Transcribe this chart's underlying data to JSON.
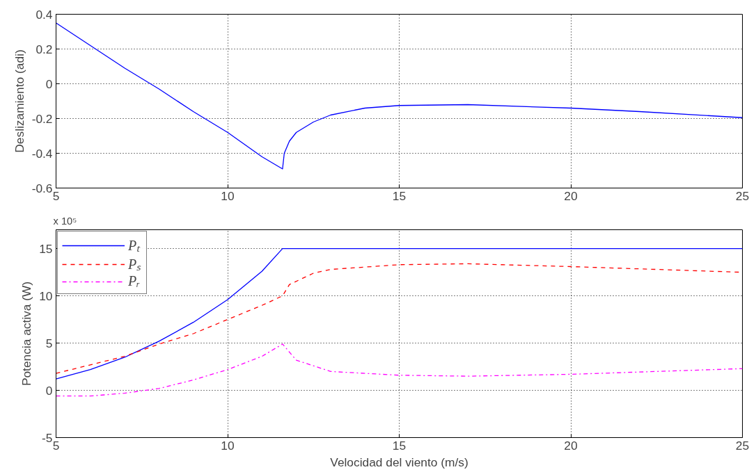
{
  "chart_data": [
    {
      "type": "line",
      "ylabel": "Deslizamiento (adi)",
      "xlim": [
        5,
        25
      ],
      "ylim": [
        -0.6,
        0.4
      ],
      "xticks": [
        5,
        10,
        15,
        20,
        25
      ],
      "yticks": [
        -0.6,
        -0.4,
        -0.2,
        0,
        0.2,
        0.4
      ],
      "grid": true,
      "legend": false,
      "series": [
        {
          "color": "#0000ff",
          "line_style": "solid",
          "x": [
            5,
            6,
            7,
            8,
            9,
            10,
            11,
            11.6,
            11.65,
            11.8,
            12,
            12.5,
            13,
            14,
            15,
            17,
            20,
            22,
            25
          ],
          "values": [
            0.35,
            0.22,
            0.09,
            -0.03,
            -0.16,
            -0.28,
            -0.42,
            -0.49,
            -0.4,
            -0.33,
            -0.28,
            -0.22,
            -0.18,
            -0.14,
            -0.125,
            -0.12,
            -0.14,
            -0.16,
            -0.195
          ]
        }
      ]
    },
    {
      "type": "line",
      "xlabel": "Velocidad del viento (m/s)",
      "ylabel": "Potencia activa (W)",
      "annotations": [
        "x 10⁵"
      ],
      "xlim": [
        5,
        25
      ],
      "ylim": [
        -5,
        17
      ],
      "xticks": [
        5,
        10,
        15,
        20,
        25
      ],
      "yticks": [
        -5,
        0,
        5,
        10,
        15
      ],
      "grid": true,
      "legend": "top left",
      "series": [
        {
          "name": "Pₜ",
          "color": "#0000ff",
          "line_style": "solid",
          "x": [
            5,
            6,
            7,
            8,
            9,
            10,
            11,
            11.6,
            25
          ],
          "values": [
            1.2,
            2.2,
            3.5,
            5.2,
            7.2,
            9.6,
            12.6,
            15,
            15
          ]
        },
        {
          "name": "Pₛ",
          "color": "#ff0000",
          "line_style": "dashed",
          "x": [
            5,
            6,
            7,
            8,
            9,
            10,
            11,
            11.6,
            11.8,
            12.5,
            13,
            15,
            17,
            20,
            25
          ],
          "values": [
            1.8,
            2.7,
            3.6,
            4.9,
            6.0,
            7.5,
            9.0,
            10.0,
            11.2,
            12.4,
            12.8,
            13.3,
            13.4,
            13.1,
            12.5
          ]
        },
        {
          "name": "Pᵣ",
          "color": "#ff00ff",
          "line_style": "dashdot",
          "x": [
            5,
            6,
            7,
            8,
            9,
            10,
            11,
            11.6,
            12,
            13,
            15,
            17,
            20,
            25
          ],
          "values": [
            -0.6,
            -0.6,
            -0.3,
            0.2,
            1.1,
            2.2,
            3.6,
            4.9,
            3.2,
            2.0,
            1.6,
            1.5,
            1.7,
            2.3
          ]
        }
      ]
    }
  ]
}
